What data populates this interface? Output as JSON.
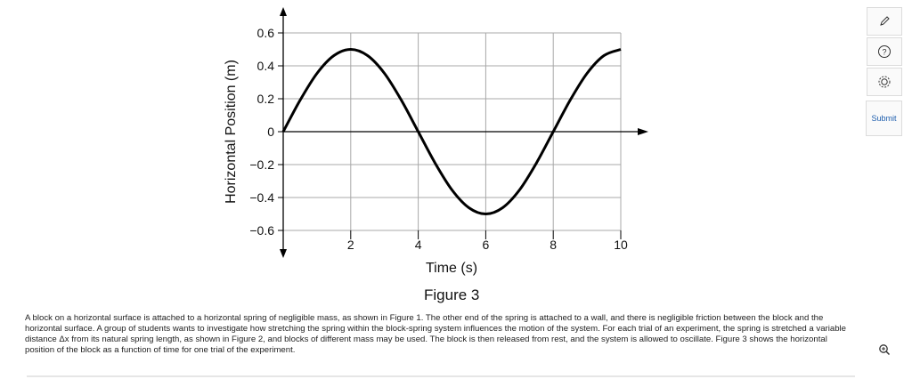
{
  "chart_data": {
    "type": "line",
    "xlabel": "Time (s)",
    "ylabel": "Horizontal Position (m)",
    "xlim": [
      0,
      10
    ],
    "ylim": [
      -0.6,
      0.6
    ],
    "xticks": [
      "2",
      "4",
      "6",
      "8",
      "10"
    ],
    "yticks": [
      "0.6",
      "0.4",
      "0.2",
      "0",
      "−0.2",
      "−0.4",
      "−0.6"
    ],
    "grid": true,
    "series": [
      {
        "x": [
          0,
          0.5,
          1,
          1.5,
          2,
          2.5,
          3,
          3.5,
          4,
          4.5,
          5,
          5.5,
          6,
          6.5,
          7,
          7.5,
          8,
          8.5,
          9,
          9.5,
          10
        ],
        "y": [
          0,
          0.191,
          0.354,
          0.462,
          0.5,
          0.462,
          0.354,
          0.191,
          0,
          -0.191,
          -0.354,
          -0.462,
          -0.5,
          -0.462,
          -0.354,
          -0.191,
          0,
          0.191,
          0.354,
          0.462,
          0.5
        ]
      }
    ]
  },
  "caption": "Figure 3",
  "paragraph": "A block on a horizontal surface is attached to a horizontal spring of negligible mass, as shown in Figure 1. The other end of the spring is attached to a wall, and there is negligible friction between the block and the horizontal surface. A group of students wants to investigate how stretching the spring within the block-spring system influences the motion of the system. For each trial of an experiment, the spring is stretched a variable distance Δx from its natural spring length, as shown in Figure 2, and blocks of different mass may be used. The block is then released from rest, and the system is allowed to oscillate. Figure 3 shows the horizontal position of the block as a function of time for one trial of the experiment.",
  "toolbar": {
    "icons": [
      "pencil-icon",
      "help-icon",
      "settings-icon"
    ],
    "submit_label": "Submit"
  },
  "zoom": {
    "icon": "zoom-in-icon"
  }
}
